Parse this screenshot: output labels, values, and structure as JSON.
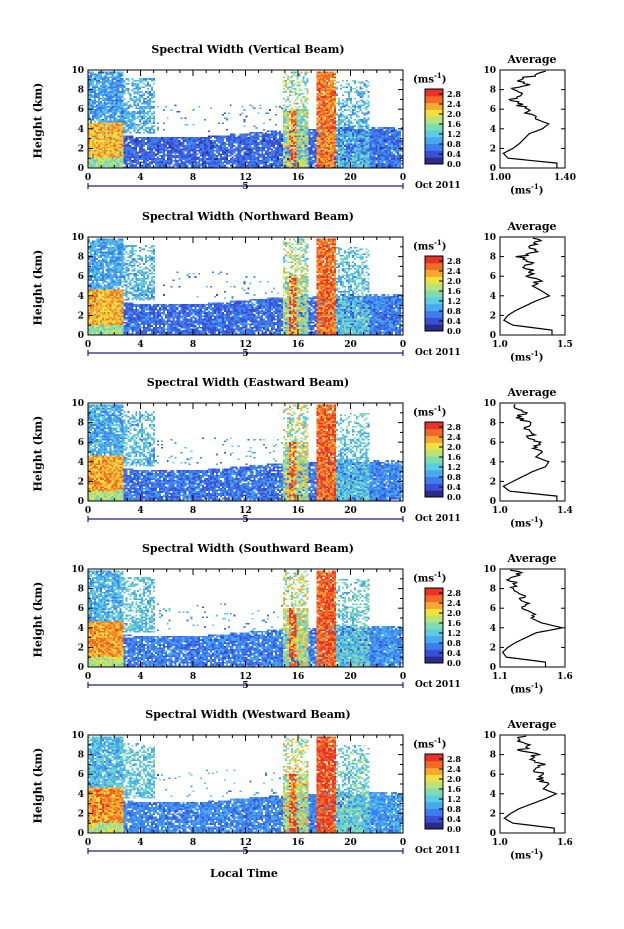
{
  "figure": {
    "xlabel": "Local Time",
    "date_label": "Oct 2011",
    "day_marker": "5",
    "ylabel": "Height (km)",
    "unit_prefix": "(ms",
    "unit_exp": "-1",
    "unit_suffix": ")",
    "average_title": "Average"
  },
  "colorscale": [
    "#2b2b8c",
    "#3a4fd6",
    "#3d7df0",
    "#48a8f0",
    "#5ccde0",
    "#7ddcb0",
    "#b8e27a",
    "#f0e040",
    "#f8a830",
    "#f06a28",
    "#e8322a"
  ],
  "chart_data": [
    {
      "type": "heatmap",
      "title": "Spectral Width (Vertical Beam)",
      "xlabel": "Local Time",
      "ylabel": "Height (km)",
      "x_ticks": [
        "0",
        "4",
        "8",
        "12",
        "16",
        "20",
        "0"
      ],
      "y_ticks": [
        "0",
        "2",
        "4",
        "6",
        "8",
        "10"
      ],
      "xlim": [
        0,
        24
      ],
      "ylim": [
        0,
        10
      ],
      "colorbar_label": "(ms-1)",
      "colorbar_ticks": [
        "0.0",
        "0.4",
        "0.8",
        "1.2",
        "1.6",
        "2.0",
        "2.4",
        "2.8"
      ],
      "clim": [
        0,
        3.0
      ],
      "average": {
        "title": "Average",
        "xlabel": "(ms-1)",
        "x_ticks": [
          "1.00",
          "1.40"
        ],
        "xlim": [
          1.0,
          1.4
        ],
        "heights": [
          0.5,
          1,
          1.5,
          2,
          2.5,
          3,
          3.5,
          4,
          4.5,
          5,
          5.5,
          6,
          6.5,
          7,
          7.5,
          8,
          8.5,
          9,
          9.5,
          10
        ],
        "values": [
          1.35,
          1.05,
          1.02,
          1.08,
          1.12,
          1.15,
          1.18,
          1.26,
          1.3,
          1.22,
          1.18,
          1.15,
          1.12,
          1.08,
          1.13,
          1.06,
          1.16,
          1.1,
          1.22,
          1.3
        ]
      }
    },
    {
      "type": "heatmap",
      "title": "Spectral Width (Northward Beam)",
      "xlabel": "Local Time",
      "ylabel": "Height (km)",
      "x_ticks": [
        "0",
        "4",
        "8",
        "12",
        "16",
        "20",
        "0"
      ],
      "y_ticks": [
        "0",
        "2",
        "4",
        "6",
        "8",
        "10"
      ],
      "xlim": [
        0,
        24
      ],
      "ylim": [
        0,
        10
      ],
      "colorbar_label": "(ms-1)",
      "colorbar_ticks": [
        "0.0",
        "0.4",
        "0.8",
        "1.2",
        "1.6",
        "2.0",
        "2.4",
        "2.8"
      ],
      "clim": [
        0,
        3.0
      ],
      "average": {
        "title": "Average",
        "xlabel": "(ms-1)",
        "x_ticks": [
          "1.0",
          "1.5"
        ],
        "xlim": [
          1.0,
          1.5
        ],
        "heights": [
          0.5,
          1,
          1.5,
          2,
          2.5,
          3,
          3.5,
          4,
          4.5,
          5,
          5.5,
          6,
          6.5,
          7,
          7.5,
          8,
          8.5,
          9,
          9.5,
          10
        ],
        "values": [
          1.4,
          1.1,
          1.03,
          1.06,
          1.12,
          1.2,
          1.28,
          1.38,
          1.32,
          1.25,
          1.3,
          1.22,
          1.26,
          1.18,
          1.24,
          1.15,
          1.28,
          1.2,
          1.3,
          1.25
        ]
      }
    },
    {
      "type": "heatmap",
      "title": "Spectral Width (Eastward Beam)",
      "xlabel": "Local Time",
      "ylabel": "Height (km)",
      "x_ticks": [
        "0",
        "4",
        "8",
        "12",
        "16",
        "20",
        "0"
      ],
      "y_ticks": [
        "0",
        "2",
        "4",
        "6",
        "8",
        "10"
      ],
      "xlim": [
        0,
        24
      ],
      "ylim": [
        0,
        10
      ],
      "colorbar_label": "(ms-1)",
      "colorbar_ticks": [
        "0.0",
        "0.4",
        "0.8",
        "1.2",
        "1.6",
        "2.0",
        "2.4",
        "2.8"
      ],
      "clim": [
        0,
        3.0
      ],
      "average": {
        "title": "Average",
        "xlabel": "(ms-1)",
        "x_ticks": [
          "1.0",
          "1.4"
        ],
        "xlim": [
          1.0,
          1.4
        ],
        "heights": [
          0.5,
          1,
          1.5,
          2,
          2.5,
          3,
          3.5,
          4,
          4.5,
          5,
          5.5,
          6,
          6.5,
          7,
          7.5,
          8,
          8.5,
          9,
          9.5,
          10
        ],
        "values": [
          1.35,
          1.06,
          1.02,
          1.08,
          1.14,
          1.2,
          1.28,
          1.3,
          1.22,
          1.26,
          1.2,
          1.24,
          1.18,
          1.22,
          1.15,
          1.2,
          1.1,
          1.16,
          1.08,
          1.12
        ]
      }
    },
    {
      "type": "heatmap",
      "title": "Spectral Width (Southward Beam)",
      "xlabel": "Local Time",
      "ylabel": "Height (km)",
      "x_ticks": [
        "0",
        "4",
        "8",
        "12",
        "16",
        "20",
        "0"
      ],
      "y_ticks": [
        "0",
        "2",
        "4",
        "6",
        "8",
        "10"
      ],
      "xlim": [
        0,
        24
      ],
      "ylim": [
        0,
        10
      ],
      "colorbar_label": "(ms-1)",
      "colorbar_ticks": [
        "0.0",
        "0.4",
        "0.8",
        "1.2",
        "1.6",
        "2.0",
        "2.4",
        "2.8"
      ],
      "clim": [
        0,
        3.0
      ],
      "average": {
        "title": "Average",
        "xlabel": "(ms-1)",
        "x_ticks": [
          "1.1",
          "1.6"
        ],
        "xlim": [
          1.1,
          1.6
        ],
        "heights": [
          0.5,
          1,
          1.5,
          2,
          2.5,
          3,
          3.5,
          4,
          4.5,
          5,
          5.5,
          6,
          6.5,
          7,
          7.5,
          8,
          8.5,
          9,
          9.5,
          10
        ],
        "values": [
          1.45,
          1.15,
          1.12,
          1.16,
          1.22,
          1.3,
          1.38,
          1.58,
          1.42,
          1.34,
          1.38,
          1.3,
          1.32,
          1.25,
          1.28,
          1.2,
          1.22,
          1.18,
          1.24,
          1.2
        ]
      }
    },
    {
      "type": "heatmap",
      "title": "Spectral Width (Westward Beam)",
      "xlabel": "Local Time",
      "ylabel": "Height (km)",
      "x_ticks": [
        "0",
        "4",
        "8",
        "12",
        "16",
        "20",
        "0"
      ],
      "y_ticks": [
        "0",
        "2",
        "4",
        "6",
        "8",
        "10"
      ],
      "xlim": [
        0,
        24
      ],
      "ylim": [
        0,
        10
      ],
      "colorbar_label": "(ms-1)",
      "colorbar_ticks": [
        "0.0",
        "0.4",
        "0.8",
        "1.2",
        "1.6",
        "2.0",
        "2.4",
        "2.8"
      ],
      "clim": [
        0,
        3.0
      ],
      "average": {
        "title": "Average",
        "xlabel": "(ms-1)",
        "x_ticks": [
          "1.0",
          "1.6"
        ],
        "xlim": [
          1.0,
          1.6
        ],
        "heights": [
          0.5,
          1,
          1.5,
          2,
          2.5,
          3,
          3.5,
          4,
          4.5,
          5,
          5.5,
          6,
          6.5,
          7,
          7.5,
          8,
          8.5,
          9,
          9.5,
          10
        ],
        "values": [
          1.5,
          1.12,
          1.04,
          1.1,
          1.18,
          1.3,
          1.42,
          1.52,
          1.4,
          1.45,
          1.36,
          1.4,
          1.3,
          1.38,
          1.28,
          1.34,
          1.2,
          1.3,
          1.15,
          1.22
        ]
      }
    }
  ]
}
